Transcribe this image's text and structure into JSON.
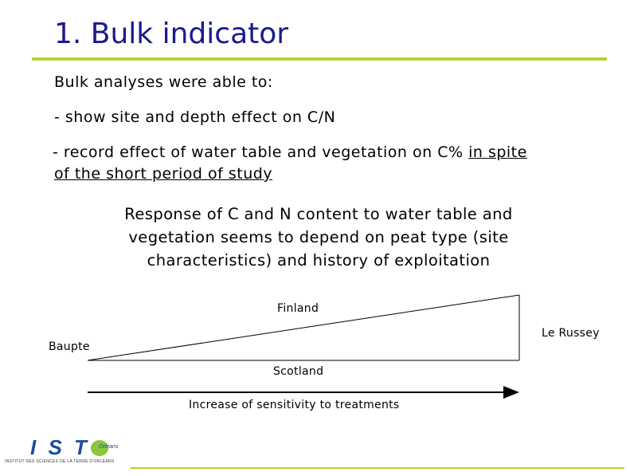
{
  "slide": {
    "title": "1. Bulk indicator",
    "intro": "Bulk analyses were able to:",
    "bullet1": "- show site and depth effect on C/N",
    "bullet2_a": " - record effect of water table and vegetation on C% ",
    "bullet2_b": "in spite",
    "bullet2_c": "of the short period of study",
    "response": "Response of C and N content to water table and vegetation seems to depend on  peat type (site characteristics) and history of exploitation"
  },
  "diagram": {
    "top_label": "Finland",
    "left_label": "Baupte",
    "right_label": "Le Russey",
    "bottom_label": "Scotland",
    "arrow_label": "Increase of sensitivity to treatments"
  },
  "logo": {
    "letters": "I S T",
    "tagline": "INSTITUT DES SCIENCES DE LA TERRE D'ORLÉANS",
    "sub": "Orléans"
  },
  "colors": {
    "title": "#1a1a8c",
    "accent_rule": "#b5d234",
    "logo_blue": "#1a4fa0",
    "logo_green": "#8cc63f"
  }
}
